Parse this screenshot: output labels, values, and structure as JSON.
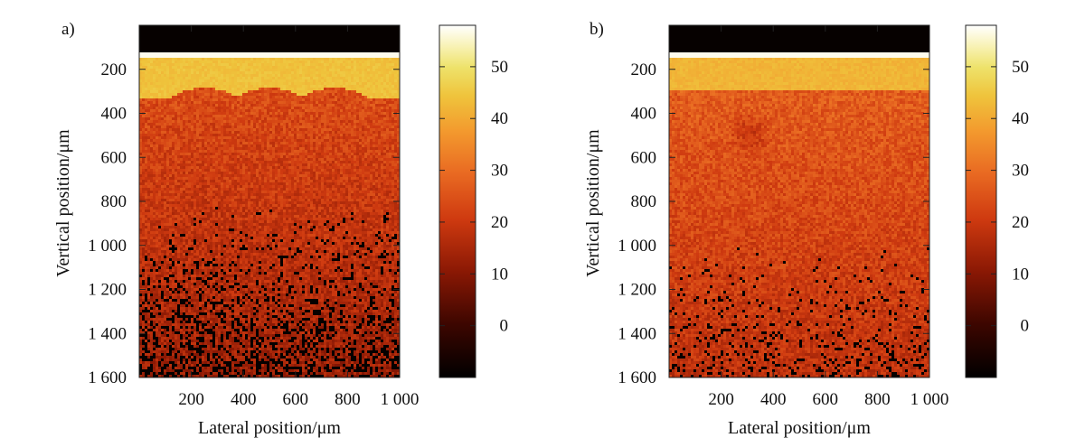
{
  "chart_data": [
    {
      "type": "heatmap",
      "panel_label": "a)",
      "title": "",
      "xlabel": "Lateral position/μm",
      "ylabel": "Vertical position/μm",
      "xlim": [
        0,
        1000
      ],
      "ylim": [
        0,
        1600
      ],
      "y_inverted": true,
      "x_ticks": [
        200,
        400,
        600,
        800,
        1000
      ],
      "x_tick_labels": [
        "200",
        "400",
        "600",
        "800",
        "1 000"
      ],
      "y_ticks": [
        200,
        400,
        600,
        800,
        1000,
        1200,
        1400,
        1600
      ],
      "y_tick_labels": [
        "200",
        "400",
        "600",
        "800",
        "1 000",
        "1 200",
        "1 400",
        "1 600"
      ],
      "colorbar": {
        "range": [
          -10,
          58
        ],
        "ticks": [
          0,
          10,
          20,
          30,
          40,
          50
        ],
        "tick_labels": [
          "0",
          "10",
          "20",
          "30",
          "40",
          "50"
        ],
        "colormap": "afmhot"
      },
      "features": {
        "surface_depth": 140,
        "bright_band": [
          150,
          330
        ],
        "bright_band_value": 44,
        "scallop_centers_x": [
          250,
          500,
          750
        ],
        "scallop_depth": 330,
        "scallop_amplitude": 45,
        "mid_value": 24,
        "deep_value": 13,
        "dropout_start_depth": 800,
        "dropout_density_at_bottom": 0.4
      }
    },
    {
      "type": "heatmap",
      "panel_label": "b)",
      "title": "",
      "xlabel": "Lateral position/μm",
      "ylabel": "Vertical position/μm",
      "xlim": [
        0,
        1000
      ],
      "ylim": [
        0,
        1600
      ],
      "y_inverted": true,
      "x_ticks": [
        200,
        400,
        600,
        800,
        1000
      ],
      "x_tick_labels": [
        "200",
        "400",
        "600",
        "800",
        "1 000"
      ],
      "y_ticks": [
        200,
        400,
        600,
        800,
        1000,
        1200,
        1400,
        1600
      ],
      "y_tick_labels": [
        "200",
        "400",
        "600",
        "800",
        "1 000",
        "1 200",
        "1 400",
        "1 600"
      ],
      "colorbar": {
        "range": [
          -10,
          58
        ],
        "ticks": [
          0,
          10,
          20,
          30,
          40,
          50
        ],
        "tick_labels": [
          "0",
          "10",
          "20",
          "30",
          "40",
          "50"
        ],
        "colormap": "afmhot"
      },
      "features": {
        "surface_depth": 140,
        "bright_band": [
          150,
          300
        ],
        "bright_band_value": 42,
        "inclusion_center": [
          310,
          490
        ],
        "inclusion_radius": 120,
        "mid_value": 27,
        "deep_value": 18,
        "dropout_start_depth": 1000,
        "dropout_density_at_bottom": 0.18
      }
    }
  ]
}
